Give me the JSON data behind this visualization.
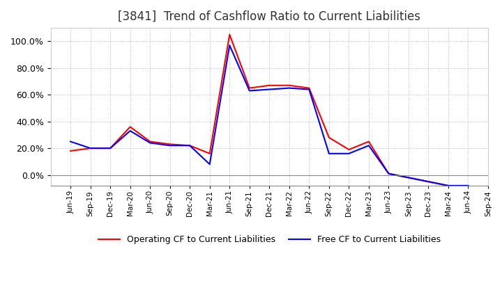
{
  "title": "[3841]  Trend of Cashflow Ratio to Current Liabilities",
  "title_fontsize": 12,
  "background_color": "#ffffff",
  "plot_bg_color": "#ffffff",
  "grid_color": "#aaaaaa",
  "operating_cf_color": "#ff0000",
  "free_cf_color": "#0000ff",
  "legend_operating": "Operating CF to Current Liabilities",
  "legend_free": "Free CF to Current Liabilities",
  "x_labels": [
    "Jun-19",
    "Sep-19",
    "Dec-19",
    "Mar-20",
    "Jun-20",
    "Sep-20",
    "Dec-20",
    "Mar-21",
    "Jun-21",
    "Sep-21",
    "Dec-21",
    "Mar-22",
    "Jun-22",
    "Sep-22",
    "Dec-22",
    "Mar-23",
    "Jun-23",
    "Sep-23",
    "Dec-23",
    "Mar-24",
    "Jun-24",
    "Sep-24"
  ],
  "operating_cf": [
    0.18,
    0.2,
    0.2,
    0.36,
    0.25,
    0.23,
    0.22,
    0.16,
    1.05,
    0.65,
    0.67,
    0.67,
    0.65,
    0.28,
    0.19,
    0.25,
    0.01,
    -0.02,
    -0.05,
    -0.08,
    -0.08,
    null
  ],
  "free_cf": [
    0.25,
    0.2,
    0.2,
    0.33,
    0.24,
    0.22,
    0.22,
    0.08,
    0.97,
    0.63,
    0.64,
    0.65,
    0.64,
    0.16,
    0.16,
    0.22,
    0.01,
    -0.02,
    -0.05,
    -0.08,
    -0.08,
    null
  ],
  "ylim": [
    -0.08,
    1.1
  ],
  "yticks": [
    0.0,
    0.2,
    0.4,
    0.6,
    0.8,
    1.0
  ]
}
